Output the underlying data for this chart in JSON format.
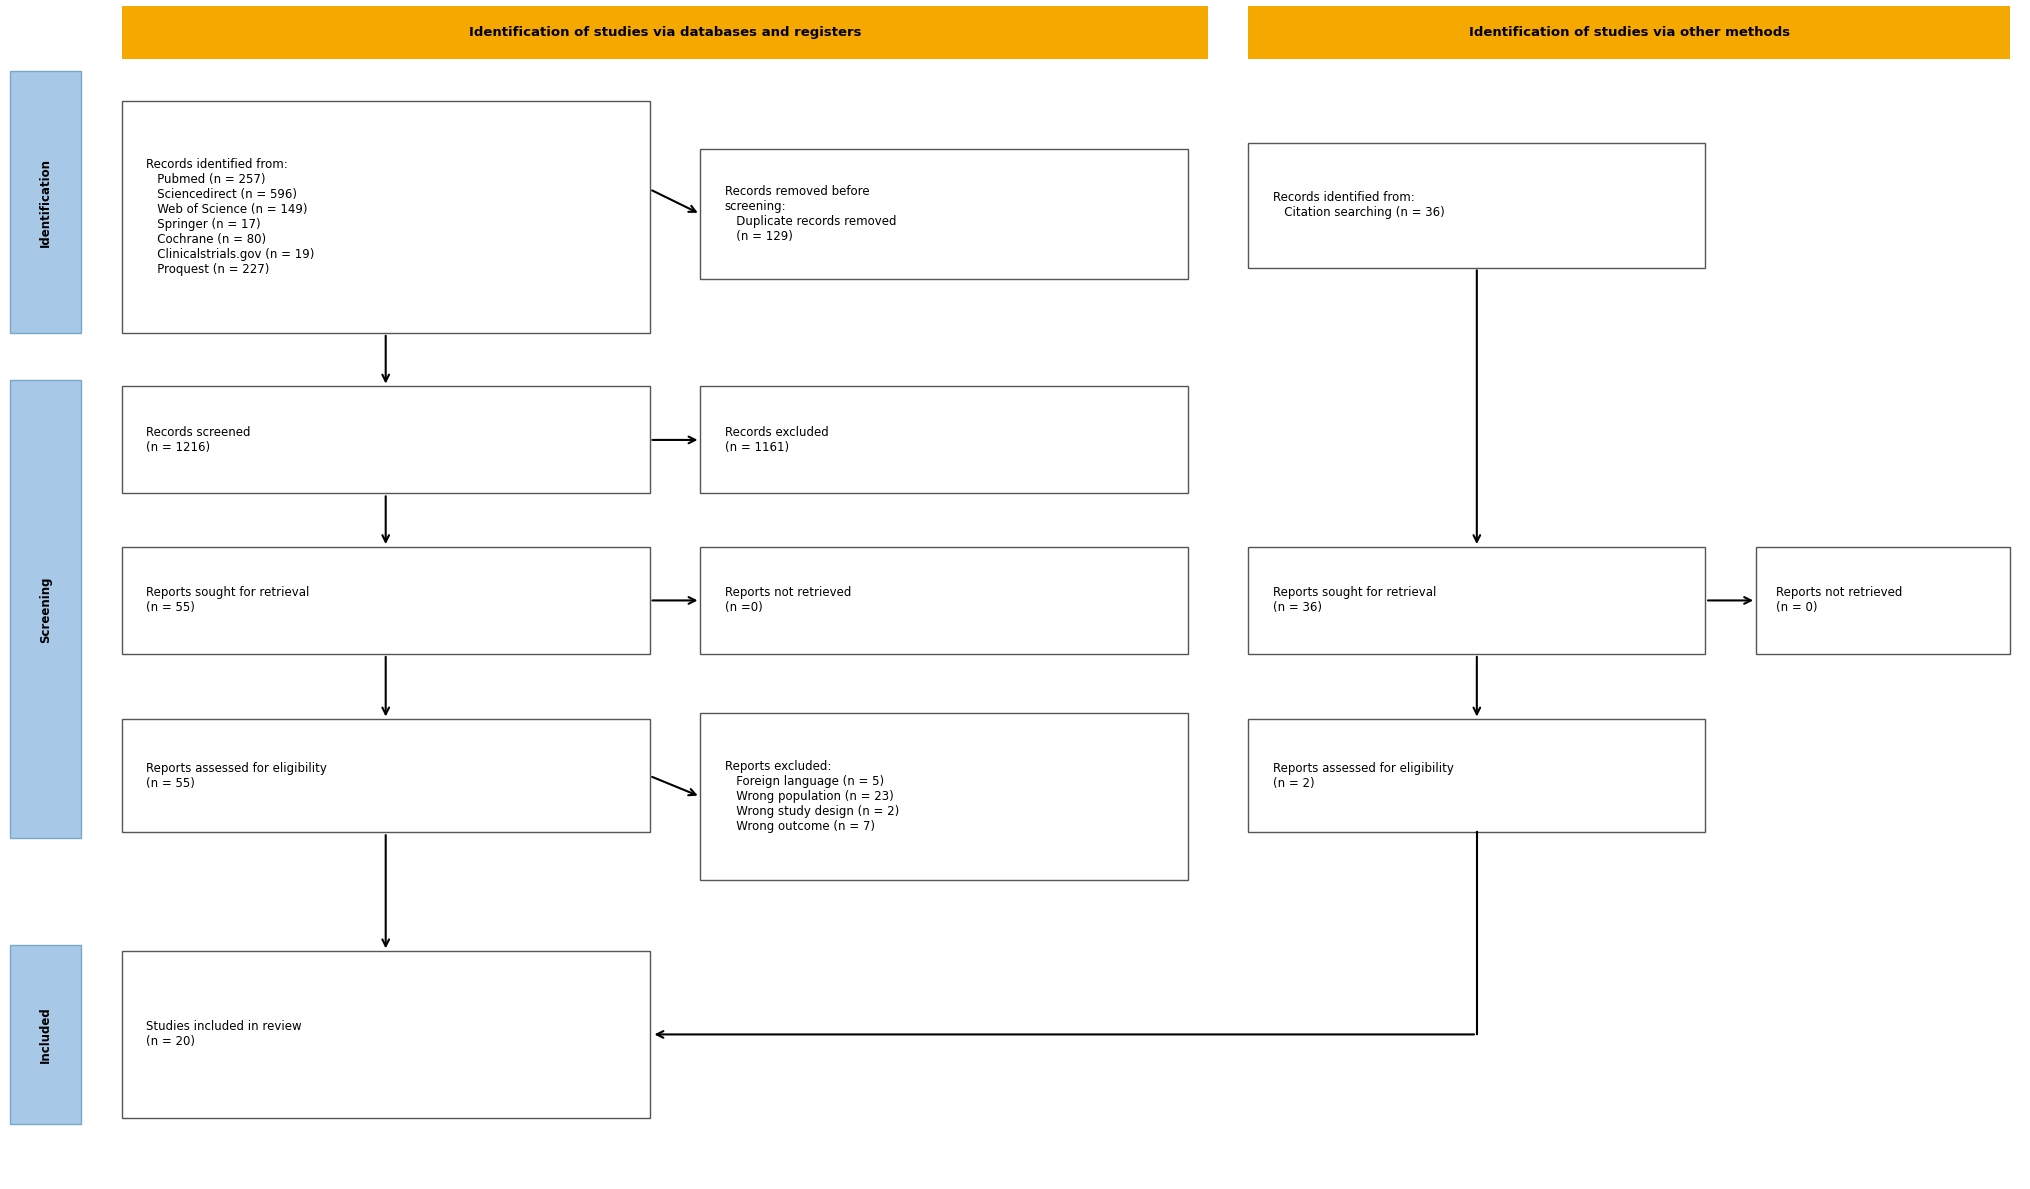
{
  "fig_width": 20.3,
  "fig_height": 11.89,
  "background_color": "#ffffff",
  "header_color": "#F5A800",
  "header_text_color": "#000000",
  "side_label_color": "#A8C8E8",
  "side_label_edge": "#7aA8C8",
  "box_facecolor": "#ffffff",
  "box_edgecolor": "#555555",
  "text_color": "#000000",
  "header1_text": "Identification of studies via databases and registers",
  "header2_text": "Identification of studies via other methods",
  "side_labels": [
    "Identification",
    "Screening",
    "Included"
  ],
  "box1_text": "Records identified from:\n   Pubmed (n = 257)\n   Sciencedirect (n = 596)\n   Web of Science (n = 149)\n   Springer (n = 17)\n   Cochrane (n = 80)\n   Clinicalstrials.gov (n = 19)\n   Proquest (n = 227)",
  "box2_text": "Records removed before\nscreening:\n   Duplicate records removed\n   (n = 129)",
  "box3_text": "Records identified from:\n   Citation searching (n = 36)",
  "box4_text": "Records screened\n(n = 1216)",
  "box5_text": "Records excluded\n(n = 1161)",
  "box6_text": "Reports sought for retrieval\n(n = 55)",
  "box7_text": "Reports not retrieved\n(n =0)",
  "box8_text": "Reports sought for retrieval\n(n = 36)",
  "box9_text": "Reports not retrieved\n(n = 0)",
  "box10_text": "Reports assessed for eligibility\n(n = 55)",
  "box11_text": "Reports excluded:\n   Foreign language (n = 5)\n   Wrong population (n = 23)\n   Wrong study design (n = 2)\n   Wrong outcome (n = 7)",
  "box12_text": "Reports assessed for eligibility\n(n = 2)",
  "box13_text": "Studies included in review\n(n = 20)",
  "arrow_color": "#000000",
  "arrow_lw": 1.5
}
